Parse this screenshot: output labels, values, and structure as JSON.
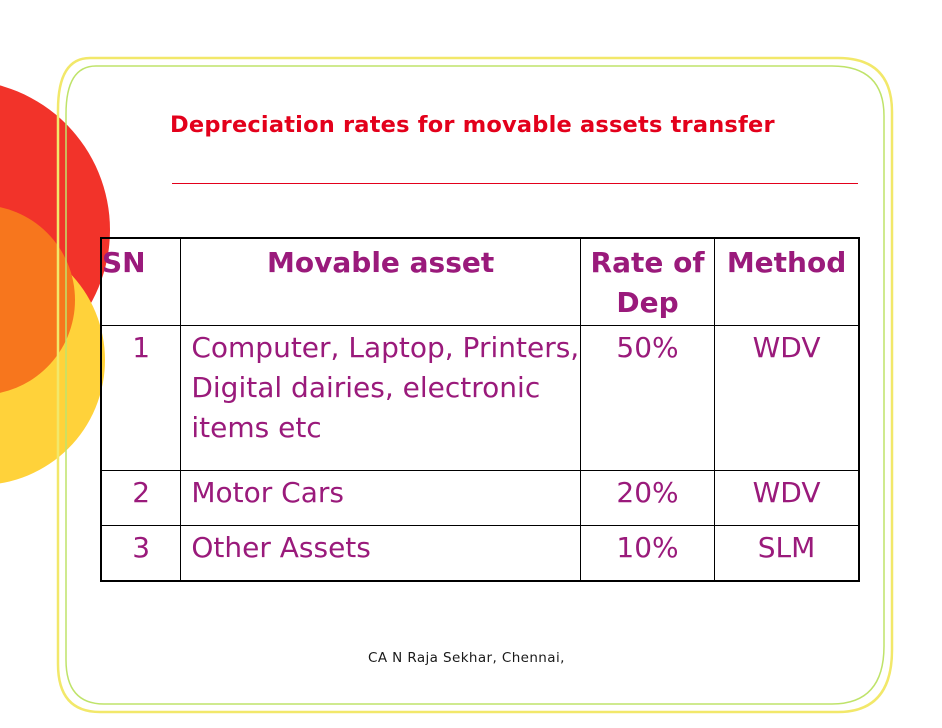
{
  "slide": {
    "title": "Depreciation rates for movable assets transfer",
    "footer": "CA N Raja Sekhar, Chennai,",
    "accent_color": "#e3001b",
    "text_color": "#9a1a7b"
  },
  "table": {
    "headers": {
      "sn": "SN",
      "asset": "Movable asset",
      "rate": "Rate of Dep",
      "method": "Method"
    },
    "rows": [
      {
        "sn": "1",
        "asset": "Computer, Laptop, Printers, Digital dairies, electronic items etc",
        "rate": "50%",
        "method": "WDV"
      },
      {
        "sn": "2",
        "asset": "Motor Cars",
        "rate": "20%",
        "method": "WDV"
      },
      {
        "sn": "3",
        "asset": "Other Assets",
        "rate": "10%",
        "method": "SLM"
      }
    ]
  }
}
